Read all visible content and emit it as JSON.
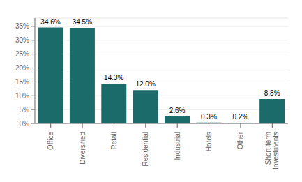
{
  "chart_data": {
    "type": "bar",
    "categories": [
      "Office",
      "Diversified",
      "Retail",
      "Residential",
      "Industrial",
      "Hotels",
      "Other",
      "Short-term\nInvestments"
    ],
    "values": [
      34.6,
      34.5,
      14.3,
      12.0,
      2.6,
      0.3,
      0.2,
      8.8
    ],
    "value_labels": [
      "34.6%",
      "34.5%",
      "14.3%",
      "12.0%",
      "2.6%",
      "0.3%",
      "0.2%",
      "8.8%"
    ],
    "data_labels": true,
    "color": "#1a6b6a",
    "ylim": [
      0,
      38
    ],
    "yticks": [
      {
        "value": 0,
        "label": "0%"
      },
      {
        "value": 5,
        "label": "5%"
      },
      {
        "value": 10,
        "label": "10%"
      },
      {
        "value": 15,
        "label": "15%"
      },
      {
        "value": 20,
        "label": "20%"
      },
      {
        "value": 25,
        "label": "25%"
      },
      {
        "value": 30,
        "label": "30%"
      },
      {
        "value": 35,
        "label": "35%"
      }
    ],
    "grid": true
  }
}
